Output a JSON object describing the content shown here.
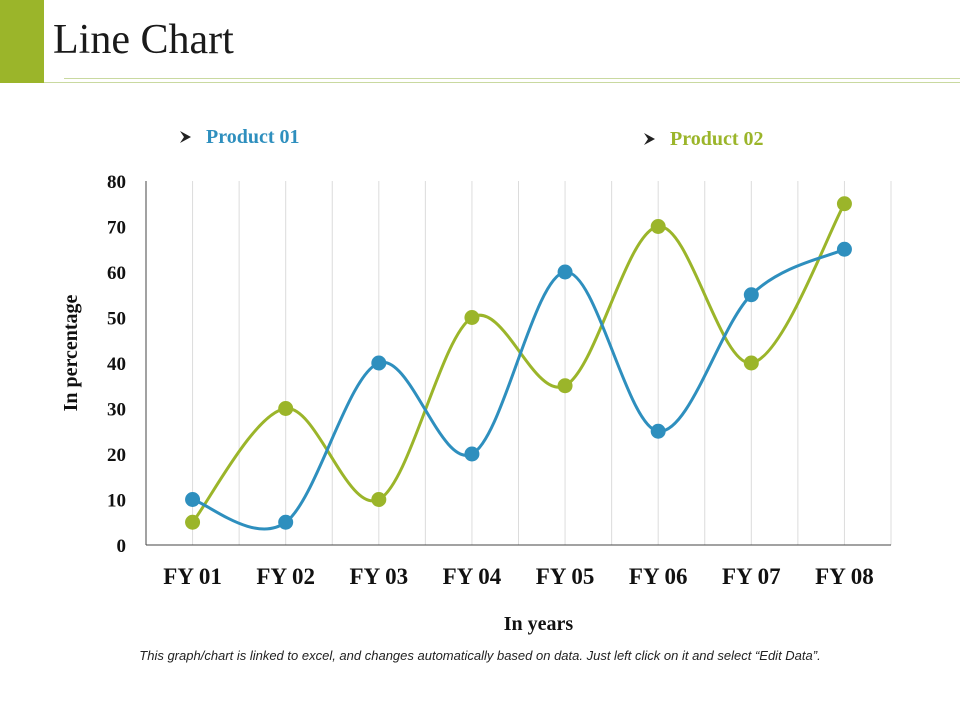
{
  "page": {
    "title": "Line Chart",
    "footnote": "This graph/chart is linked to excel, and changes automatically based on data. Just left click on it and select “Edit Data”."
  },
  "colors": {
    "accent": "#9bb52a",
    "product01": "#2e8fbe",
    "product02": "#9bb52a"
  },
  "chart_data": {
    "type": "line",
    "smooth": true,
    "categories": [
      "FY 01",
      "FY 02",
      "FY 03",
      "FY 04",
      "FY 05",
      "FY 06",
      "FY 07",
      "FY 08"
    ],
    "series": [
      {
        "name": "Product 01",
        "color": "#2e8fbe",
        "values": [
          10,
          5,
          40,
          20,
          60,
          25,
          55,
          65
        ]
      },
      {
        "name": "Product 02",
        "color": "#9bb52a",
        "values": [
          5,
          30,
          10,
          50,
          35,
          70,
          40,
          75
        ]
      }
    ],
    "xlabel": "In years",
    "ylabel": "In percentage",
    "ylim": [
      0,
      80
    ],
    "yticks": [
      0,
      10,
      20,
      30,
      40,
      50,
      60,
      70,
      80
    ],
    "grid": "vertical",
    "legend": "top"
  }
}
